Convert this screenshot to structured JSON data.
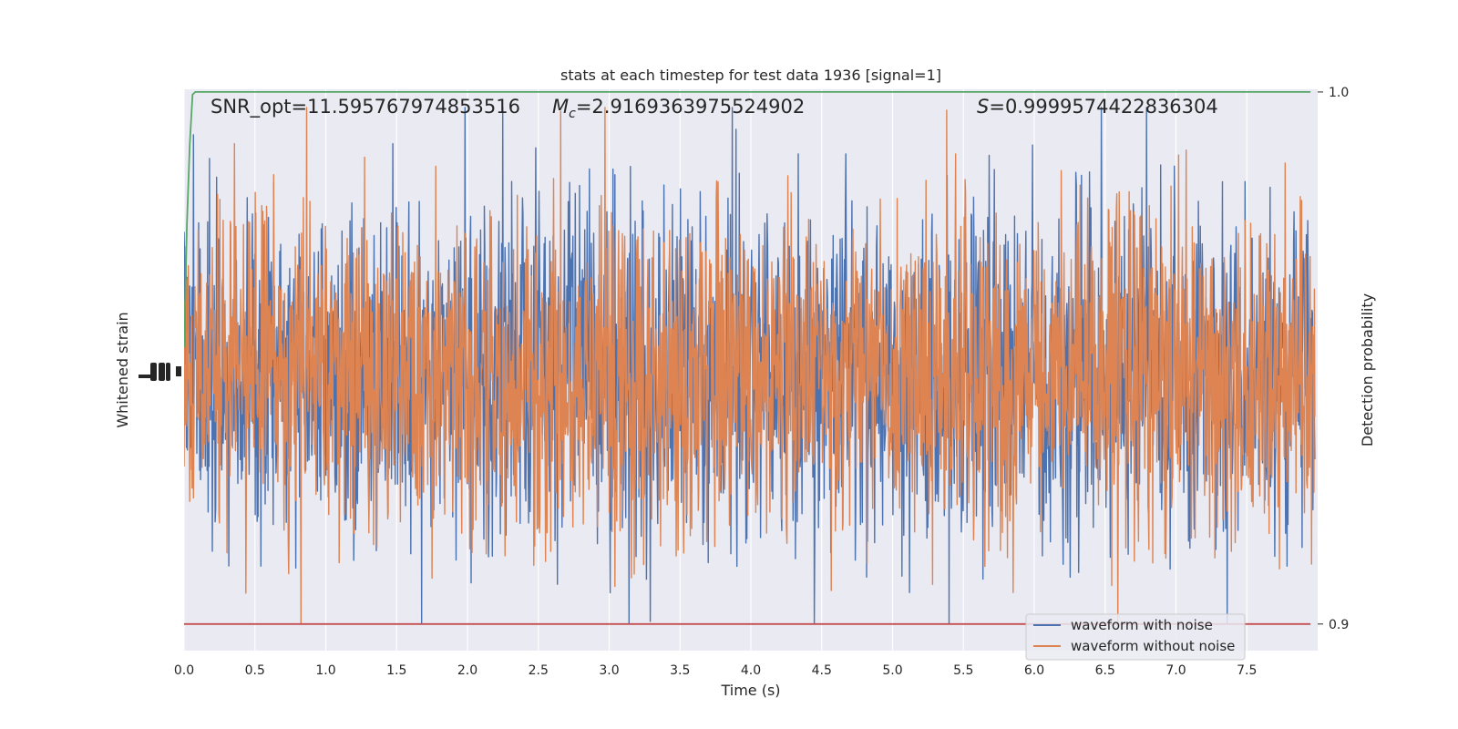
{
  "chart_data": {
    "type": "line",
    "title": "stats at each timestep for test data 1936 [signal=1]",
    "xlabel": "Time (s)",
    "ylabel_left": "Whitened strain",
    "ylabel_right": "Detection probability",
    "xlim": [
      0.0,
      8.0
    ],
    "xticks": [
      0.0,
      0.5,
      1.0,
      1.5,
      2.0,
      2.5,
      3.0,
      3.5,
      4.0,
      4.5,
      5.0,
      5.5,
      6.0,
      6.5,
      7.0,
      7.5
    ],
    "xtick_labels": [
      "0.0",
      "0.5",
      "1.0",
      "1.5",
      "2.0",
      "2.5",
      "3.0",
      "3.5",
      "4.0",
      "4.5",
      "5.0",
      "5.5",
      "6.0",
      "6.5",
      "7.0",
      "7.5"
    ],
    "right_ylim": [
      0.895,
      1.0005
    ],
    "right_yticks": [
      0.9,
      1.0
    ],
    "right_ytick_labels": [
      "0.9",
      "1.0"
    ],
    "grid": true,
    "legend_placement": "lower-right",
    "annotations": {
      "snr_opt": "SNR_opt=11.595767974853516",
      "mc_symbol": "M",
      "mc_subscript": "c",
      "mc_value": "=2.9169363975524902",
      "s_symbol": "S",
      "s_value": "=0.9999574422836304"
    },
    "series": [
      {
        "name": "waveform with noise",
        "color": "#4c72b0",
        "axis": "left",
        "style": "noise",
        "seed": 11,
        "n": 2400
      },
      {
        "name": "waveform without noise",
        "color": "#dd8452",
        "axis": "left",
        "style": "noise",
        "seed": 7,
        "n": 2400
      },
      {
        "name": "",
        "color": "#55a868",
        "axis": "right",
        "x": [
          0.0,
          0.02,
          0.04,
          0.06,
          0.08,
          1.0,
          2.0,
          3.0,
          4.0,
          5.0,
          6.0,
          7.0,
          7.95
        ],
        "y": [
          0.952,
          0.975,
          0.99,
          0.9995,
          1.0,
          1.0,
          1.0,
          1.0,
          1.0,
          1.0,
          1.0,
          1.0,
          1.0
        ]
      },
      {
        "name": "",
        "color": "#c44e52",
        "axis": "right",
        "x": [
          0.0,
          7.95
        ],
        "y": [
          0.9,
          0.9
        ]
      }
    ]
  }
}
